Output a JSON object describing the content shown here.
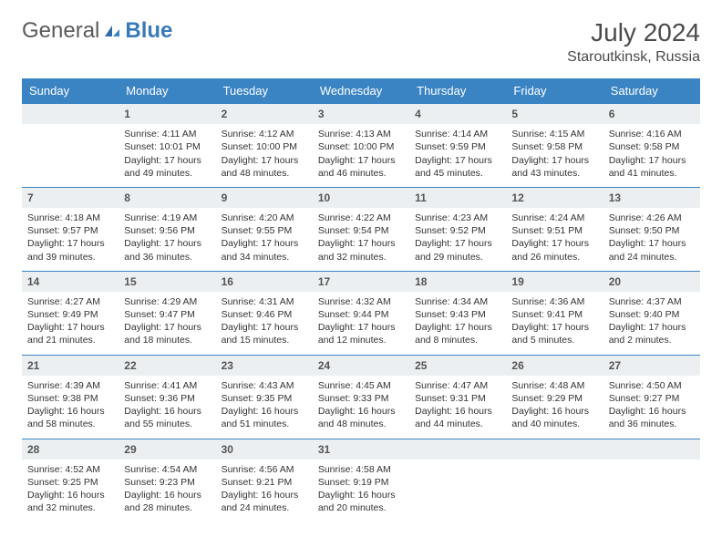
{
  "logo": {
    "part1": "General",
    "part2": "Blue"
  },
  "title": {
    "month_year": "July 2024",
    "location": "Staroutkinsk, Russia"
  },
  "colors": {
    "header_bg": "#3a84c4",
    "header_text": "#ffffff",
    "daynum_bg": "#eceff1",
    "row_border": "#3a84c4",
    "text": "#333333",
    "logo_blue": "#3a7ab8"
  },
  "typography": {
    "title_fontsize": 28,
    "location_fontsize": 16,
    "dayheader_fontsize": 13,
    "cell_fontsize": 10.5
  },
  "day_headers": [
    "Sunday",
    "Monday",
    "Tuesday",
    "Wednesday",
    "Thursday",
    "Friday",
    "Saturday"
  ],
  "weeks": [
    [
      null,
      {
        "n": "1",
        "sunrise": "Sunrise: 4:11 AM",
        "sunset": "Sunset: 10:01 PM",
        "dl1": "Daylight: 17 hours",
        "dl2": "and 49 minutes."
      },
      {
        "n": "2",
        "sunrise": "Sunrise: 4:12 AM",
        "sunset": "Sunset: 10:00 PM",
        "dl1": "Daylight: 17 hours",
        "dl2": "and 48 minutes."
      },
      {
        "n": "3",
        "sunrise": "Sunrise: 4:13 AM",
        "sunset": "Sunset: 10:00 PM",
        "dl1": "Daylight: 17 hours",
        "dl2": "and 46 minutes."
      },
      {
        "n": "4",
        "sunrise": "Sunrise: 4:14 AM",
        "sunset": "Sunset: 9:59 PM",
        "dl1": "Daylight: 17 hours",
        "dl2": "and 45 minutes."
      },
      {
        "n": "5",
        "sunrise": "Sunrise: 4:15 AM",
        "sunset": "Sunset: 9:58 PM",
        "dl1": "Daylight: 17 hours",
        "dl2": "and 43 minutes."
      },
      {
        "n": "6",
        "sunrise": "Sunrise: 4:16 AM",
        "sunset": "Sunset: 9:58 PM",
        "dl1": "Daylight: 17 hours",
        "dl2": "and 41 minutes."
      }
    ],
    [
      {
        "n": "7",
        "sunrise": "Sunrise: 4:18 AM",
        "sunset": "Sunset: 9:57 PM",
        "dl1": "Daylight: 17 hours",
        "dl2": "and 39 minutes."
      },
      {
        "n": "8",
        "sunrise": "Sunrise: 4:19 AM",
        "sunset": "Sunset: 9:56 PM",
        "dl1": "Daylight: 17 hours",
        "dl2": "and 36 minutes."
      },
      {
        "n": "9",
        "sunrise": "Sunrise: 4:20 AM",
        "sunset": "Sunset: 9:55 PM",
        "dl1": "Daylight: 17 hours",
        "dl2": "and 34 minutes."
      },
      {
        "n": "10",
        "sunrise": "Sunrise: 4:22 AM",
        "sunset": "Sunset: 9:54 PM",
        "dl1": "Daylight: 17 hours",
        "dl2": "and 32 minutes."
      },
      {
        "n": "11",
        "sunrise": "Sunrise: 4:23 AM",
        "sunset": "Sunset: 9:52 PM",
        "dl1": "Daylight: 17 hours",
        "dl2": "and 29 minutes."
      },
      {
        "n": "12",
        "sunrise": "Sunrise: 4:24 AM",
        "sunset": "Sunset: 9:51 PM",
        "dl1": "Daylight: 17 hours",
        "dl2": "and 26 minutes."
      },
      {
        "n": "13",
        "sunrise": "Sunrise: 4:26 AM",
        "sunset": "Sunset: 9:50 PM",
        "dl1": "Daylight: 17 hours",
        "dl2": "and 24 minutes."
      }
    ],
    [
      {
        "n": "14",
        "sunrise": "Sunrise: 4:27 AM",
        "sunset": "Sunset: 9:49 PM",
        "dl1": "Daylight: 17 hours",
        "dl2": "and 21 minutes."
      },
      {
        "n": "15",
        "sunrise": "Sunrise: 4:29 AM",
        "sunset": "Sunset: 9:47 PM",
        "dl1": "Daylight: 17 hours",
        "dl2": "and 18 minutes."
      },
      {
        "n": "16",
        "sunrise": "Sunrise: 4:31 AM",
        "sunset": "Sunset: 9:46 PM",
        "dl1": "Daylight: 17 hours",
        "dl2": "and 15 minutes."
      },
      {
        "n": "17",
        "sunrise": "Sunrise: 4:32 AM",
        "sunset": "Sunset: 9:44 PM",
        "dl1": "Daylight: 17 hours",
        "dl2": "and 12 minutes."
      },
      {
        "n": "18",
        "sunrise": "Sunrise: 4:34 AM",
        "sunset": "Sunset: 9:43 PM",
        "dl1": "Daylight: 17 hours",
        "dl2": "and 8 minutes."
      },
      {
        "n": "19",
        "sunrise": "Sunrise: 4:36 AM",
        "sunset": "Sunset: 9:41 PM",
        "dl1": "Daylight: 17 hours",
        "dl2": "and 5 minutes."
      },
      {
        "n": "20",
        "sunrise": "Sunrise: 4:37 AM",
        "sunset": "Sunset: 9:40 PM",
        "dl1": "Daylight: 17 hours",
        "dl2": "and 2 minutes."
      }
    ],
    [
      {
        "n": "21",
        "sunrise": "Sunrise: 4:39 AM",
        "sunset": "Sunset: 9:38 PM",
        "dl1": "Daylight: 16 hours",
        "dl2": "and 58 minutes."
      },
      {
        "n": "22",
        "sunrise": "Sunrise: 4:41 AM",
        "sunset": "Sunset: 9:36 PM",
        "dl1": "Daylight: 16 hours",
        "dl2": "and 55 minutes."
      },
      {
        "n": "23",
        "sunrise": "Sunrise: 4:43 AM",
        "sunset": "Sunset: 9:35 PM",
        "dl1": "Daylight: 16 hours",
        "dl2": "and 51 minutes."
      },
      {
        "n": "24",
        "sunrise": "Sunrise: 4:45 AM",
        "sunset": "Sunset: 9:33 PM",
        "dl1": "Daylight: 16 hours",
        "dl2": "and 48 minutes."
      },
      {
        "n": "25",
        "sunrise": "Sunrise: 4:47 AM",
        "sunset": "Sunset: 9:31 PM",
        "dl1": "Daylight: 16 hours",
        "dl2": "and 44 minutes."
      },
      {
        "n": "26",
        "sunrise": "Sunrise: 4:48 AM",
        "sunset": "Sunset: 9:29 PM",
        "dl1": "Daylight: 16 hours",
        "dl2": "and 40 minutes."
      },
      {
        "n": "27",
        "sunrise": "Sunrise: 4:50 AM",
        "sunset": "Sunset: 9:27 PM",
        "dl1": "Daylight: 16 hours",
        "dl2": "and 36 minutes."
      }
    ],
    [
      {
        "n": "28",
        "sunrise": "Sunrise: 4:52 AM",
        "sunset": "Sunset: 9:25 PM",
        "dl1": "Daylight: 16 hours",
        "dl2": "and 32 minutes."
      },
      {
        "n": "29",
        "sunrise": "Sunrise: 4:54 AM",
        "sunset": "Sunset: 9:23 PM",
        "dl1": "Daylight: 16 hours",
        "dl2": "and 28 minutes."
      },
      {
        "n": "30",
        "sunrise": "Sunrise: 4:56 AM",
        "sunset": "Sunset: 9:21 PM",
        "dl1": "Daylight: 16 hours",
        "dl2": "and 24 minutes."
      },
      {
        "n": "31",
        "sunrise": "Sunrise: 4:58 AM",
        "sunset": "Sunset: 9:19 PM",
        "dl1": "Daylight: 16 hours",
        "dl2": "and 20 minutes."
      },
      null,
      null,
      null
    ]
  ]
}
